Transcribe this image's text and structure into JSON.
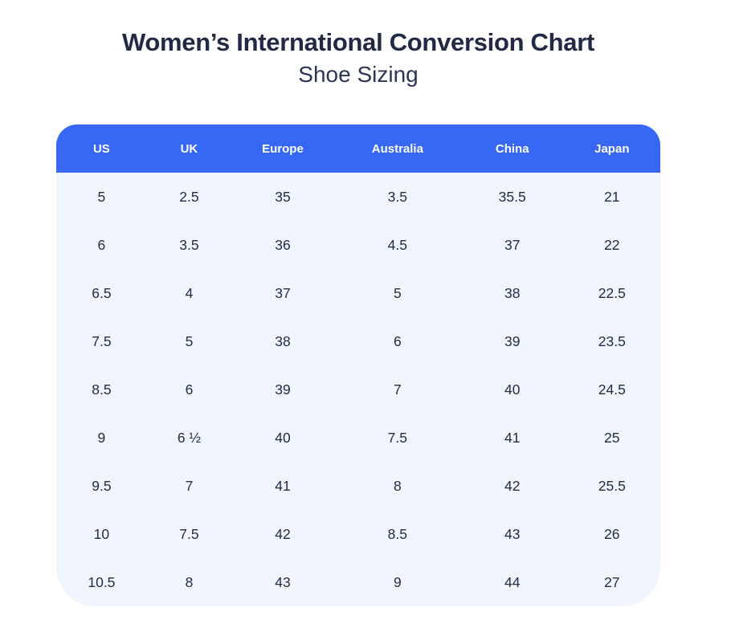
{
  "page": {
    "title": "Women’s International Conversion Chart",
    "subtitle": "Shoe Sizing"
  },
  "colors": {
    "header_bg": "#3667F5",
    "header_text": "#FFFFFF",
    "body_bg": "#F1F5FD",
    "title_text": "#212945",
    "subtitle_text": "#2B3554",
    "cell_text": "#232C45",
    "page_bg": "#FFFFFF"
  },
  "chart_data": {
    "type": "table",
    "title": "Women’s International Conversion Chart",
    "subtitle": "Shoe Sizing",
    "columns": [
      "US",
      "UK",
      "Europe",
      "Australia",
      "China",
      "Japan"
    ],
    "rows": [
      [
        "5",
        "2.5",
        "35",
        "3.5",
        "35.5",
        "21"
      ],
      [
        "6",
        "3.5",
        "36",
        "4.5",
        "37",
        "22"
      ],
      [
        "6.5",
        "4",
        "37",
        "5",
        "38",
        "22.5"
      ],
      [
        "7.5",
        "5",
        "38",
        "6",
        "39",
        "23.5"
      ],
      [
        "8.5",
        "6",
        "39",
        "7",
        "40",
        "24.5"
      ],
      [
        "9",
        "6 ½",
        "40",
        "7.5",
        "41",
        "25"
      ],
      [
        "9.5",
        "7",
        "41",
        "8",
        "42",
        "25.5"
      ],
      [
        "10",
        "7.5",
        "42",
        "8.5",
        "43",
        "26"
      ],
      [
        "10.5",
        "8",
        "43",
        "9",
        "44",
        "27"
      ]
    ],
    "layout": {
      "column_width_percents": [
        15,
        14,
        17,
        21,
        17,
        16
      ],
      "header_corner_radius_px": 26,
      "bottom_corner_radius_px": 48
    }
  }
}
